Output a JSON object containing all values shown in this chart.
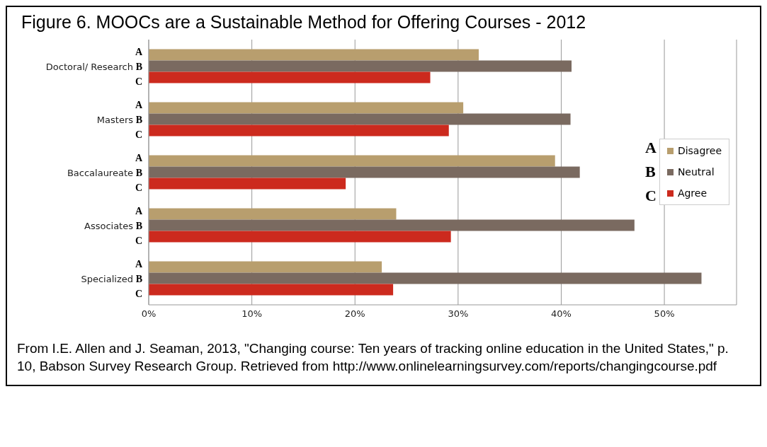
{
  "chart_data": {
    "type": "bar",
    "orientation": "horizontal",
    "title": "Figure 6. MOOCs are a Sustainable Method for Offering Courses - 2012",
    "categories": [
      "Doctoral/ Research",
      "Masters",
      "Baccalaureate",
      "Associates",
      "Specialized"
    ],
    "series": [
      {
        "name": "Disagree",
        "color": "#b89e6e",
        "values": [
          32.0,
          30.5,
          39.4,
          24.0,
          22.6
        ]
      },
      {
        "name": "Neutral",
        "color": "#7a6a60",
        "values": [
          41.0,
          40.9,
          41.8,
          47.1,
          53.6
        ]
      },
      {
        "name": "Agree",
        "color": "#cc2a1e",
        "values": [
          27.3,
          29.1,
          19.1,
          29.3,
          23.7
        ]
      }
    ],
    "xlim": [
      0,
      57
    ],
    "xticks": [
      {
        "value": 0,
        "label": "0%"
      },
      {
        "value": 10,
        "label": "10%"
      },
      {
        "value": 20,
        "label": "20%"
      },
      {
        "value": 30,
        "label": "30%"
      },
      {
        "value": 40,
        "label": "40%"
      },
      {
        "value": 50,
        "label": "50%"
      }
    ],
    "grid": "x",
    "legend": "right",
    "annotations": [
      "A",
      "B",
      "C",
      "A",
      "B",
      "C",
      "A",
      "B",
      "C",
      "A",
      "B",
      "C",
      "A",
      "B",
      "C",
      "A",
      "B",
      "C",
      "From I.E. Allen and J. Seaman, 2013, \"Changing course: Ten years of tracking online education in the United States,\" p. 10, Babson Survey Research Group.  Retrieved from http://www.onlinelearningsurvey.com/reports/changingcourse.pdf"
    ]
  }
}
